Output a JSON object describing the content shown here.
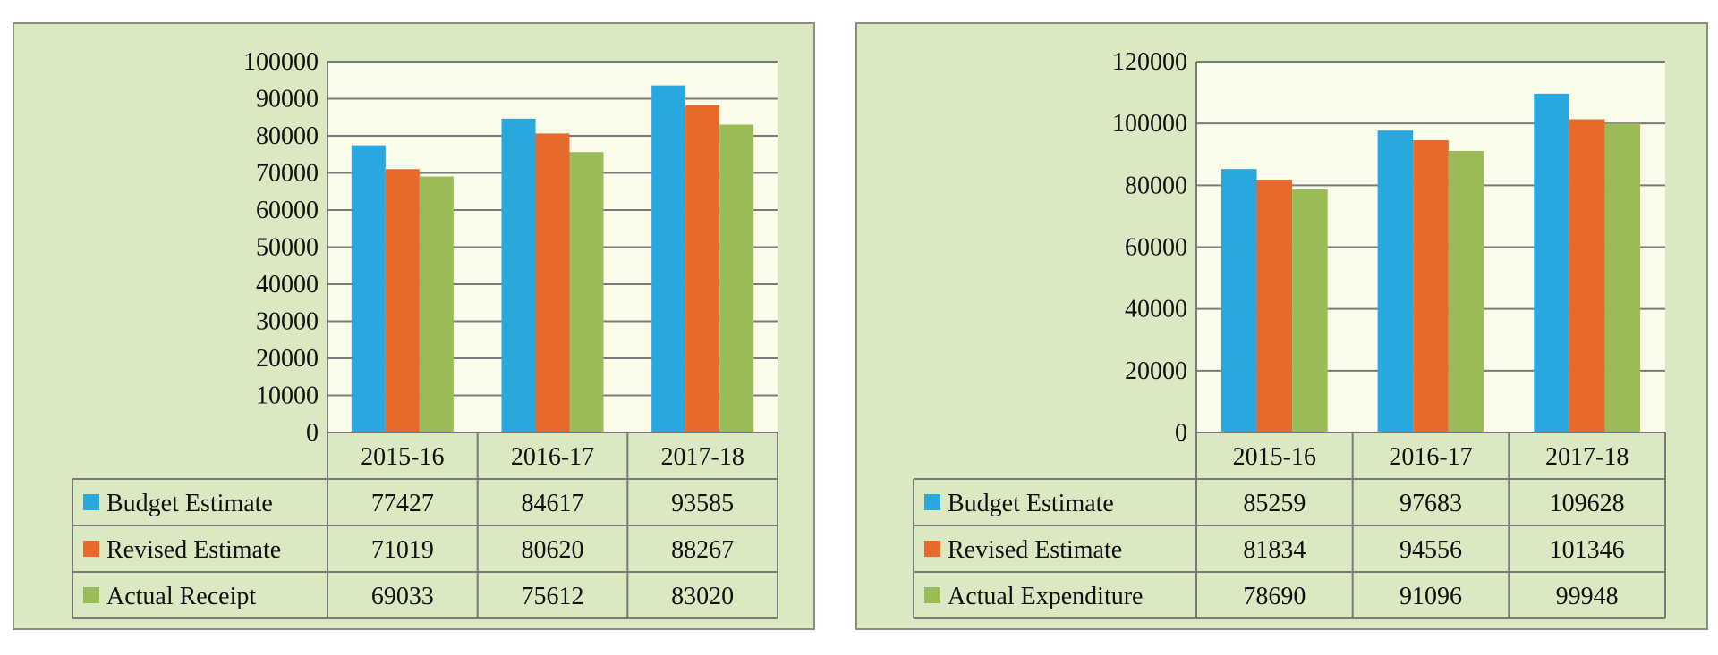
{
  "colors": {
    "panel_bg": "#dbe9c3",
    "plot_bg": "#fbfbea",
    "budget": "#29a8e0",
    "revised": "#e8692a",
    "actual": "#9bbb59"
  },
  "chart_data": [
    {
      "type": "bar",
      "title": "",
      "xlabel": "",
      "ylabel": "",
      "categories": [
        "2015-16",
        "2016-17",
        "2017-18"
      ],
      "ylim": [
        0,
        100000
      ],
      "yticks": [
        0,
        10000,
        20000,
        30000,
        40000,
        50000,
        60000,
        70000,
        80000,
        90000,
        100000
      ],
      "grid": true,
      "legend": "data table below chart",
      "series": [
        {
          "name": "Budget Estimate",
          "color": "#29a8e0",
          "values": [
            77427,
            84617,
            93585
          ]
        },
        {
          "name": "Revised Estimate",
          "color": "#e8692a",
          "values": [
            71019,
            80620,
            88267
          ]
        },
        {
          "name": "Actual Receipt",
          "color": "#9bbb59",
          "values": [
            69033,
            75612,
            83020
          ]
        }
      ]
    },
    {
      "type": "bar",
      "title": "",
      "xlabel": "",
      "ylabel": "",
      "categories": [
        "2015-16",
        "2016-17",
        "2017-18"
      ],
      "ylim": [
        0,
        120000
      ],
      "yticks": [
        0,
        20000,
        40000,
        60000,
        80000,
        100000,
        120000
      ],
      "grid": true,
      "legend": "data table below chart",
      "series": [
        {
          "name": "Budget Estimate",
          "color": "#29a8e0",
          "values": [
            85259,
            97683,
            109628
          ]
        },
        {
          "name": "Revised Estimate",
          "color": "#e8692a",
          "values": [
            81834,
            94556,
            101346
          ]
        },
        {
          "name": "Actual Expenditure",
          "color": "#9bbb59",
          "values": [
            78690,
            91096,
            99948
          ]
        }
      ]
    }
  ]
}
